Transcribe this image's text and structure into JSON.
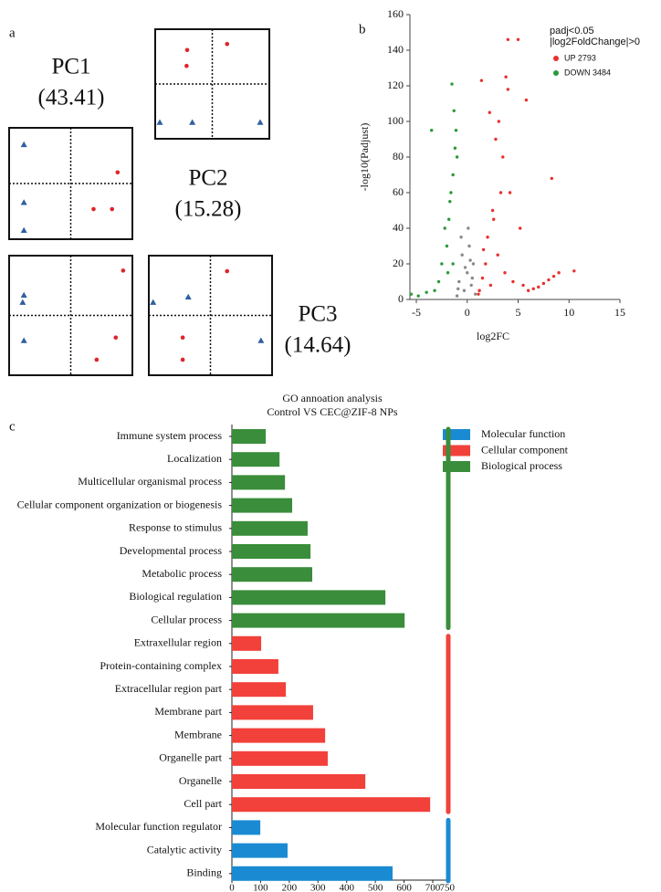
{
  "chart_data": [
    {
      "type": "pca",
      "panel": "a",
      "labels": [
        {
          "name": "PC1",
          "value": "(43.41)"
        },
        {
          "name": "PC2",
          "value": "(15.28)"
        },
        {
          "name": "PC3",
          "value": "(14.64)"
        }
      ],
      "xlim": [
        -1,
        1
      ],
      "ylim": [
        -1,
        1
      ],
      "plots": [
        {
          "series": [
            {
              "marker": "circle",
              "color": "#e0242a",
              "x": [
                -0.44,
                -0.45,
                0.26
              ],
              "y": [
                0.62,
                0.33,
                0.73
              ]
            },
            {
              "marker": "triangle",
              "color": "#2e5fa0",
              "x": [
                -0.92,
                -0.35,
                0.84
              ],
              "y": [
                -0.7,
                -0.7,
                -0.7
              ]
            }
          ]
        },
        {
          "series": [
            {
              "marker": "circle",
              "color": "#e0242a",
              "x": [
                0.76,
                0.37,
                0.67
              ],
              "y": [
                0.2,
                -0.46,
                -0.46
              ]
            },
            {
              "marker": "triangle",
              "color": "#2e5fa0",
              "x": [
                -0.76,
                -0.76,
                -0.76
              ],
              "y": [
                0.7,
                -0.34,
                -0.84
              ]
            }
          ]
        },
        {
          "series": [
            {
              "marker": "circle",
              "color": "#e0242a",
              "x": [
                0.85,
                0.73,
                0.42
              ],
              "y": [
                0.75,
                -0.37,
                -0.74
              ]
            },
            {
              "marker": "triangle",
              "color": "#2e5fa0",
              "x": [
                -0.76,
                -0.78,
                -0.76
              ],
              "y": [
                0.34,
                0.22,
                -0.42
              ]
            }
          ]
        },
        {
          "series": [
            {
              "marker": "circle",
              "color": "#e0242a",
              "x": [
                0.27,
                -0.45,
                -0.45
              ],
              "y": [
                0.74,
                -0.37,
                -0.74
              ]
            },
            {
              "marker": "triangle",
              "color": "#2e5fa0",
              "x": [
                -0.93,
                -0.36,
                0.82
              ],
              "y": [
                0.22,
                0.31,
                -0.42
              ]
            }
          ]
        }
      ]
    },
    {
      "type": "scatter",
      "panel": "b",
      "xlabel": "log2FC",
      "ylabel": "-log10(Padjust)",
      "legend_title": [
        "padj<0.05",
        "|log2FoldChange|>0"
      ],
      "xlim": [
        -6,
        15
      ],
      "ylim": [
        0,
        160
      ],
      "xticks": [
        -5,
        0,
        5,
        10,
        15
      ],
      "yticks": [
        0,
        20,
        40,
        60,
        80,
        100,
        120,
        140,
        160
      ],
      "series": [
        {
          "name": "UP 2793",
          "color": "#e8312f",
          "x": [
            1.2,
            1.5,
            1.8,
            2.0,
            2.3,
            2.6,
            3.0,
            3.3,
            3.7,
            4.0,
            4.5,
            5.0,
            5.5,
            6.0,
            6.5,
            7.0,
            7.5,
            8.0,
            8.5,
            9.0,
            10.5,
            1.4,
            2.2,
            3.5,
            4.2,
            5.2,
            1.1,
            1.6,
            2.5,
            3.8,
            8.3,
            4.0,
            3.1,
            2.8,
            5.8
          ],
          "values": [
            5,
            12,
            20,
            35,
            8,
            45,
            25,
            60,
            15,
            146,
            10,
            146,
            8,
            5,
            6,
            7,
            9,
            11,
            13,
            15,
            16,
            123,
            105,
            80,
            60,
            40,
            3,
            28,
            50,
            125,
            68,
            118,
            100,
            90,
            112
          ]
        },
        {
          "name": "DOWN 3484",
          "color": "#2a9a3a",
          "x": [
            -5.5,
            -4.8,
            -4,
            -3.2,
            -2.5,
            -2,
            -1.8,
            -1.6,
            -1.4,
            -1.2,
            -1.5,
            -1.3,
            -1.1,
            -2.2,
            -3.5,
            -1.7,
            -1.0,
            -1.4,
            -2.8,
            -1.9
          ],
          "values": [
            3,
            2,
            4,
            5,
            20,
            30,
            45,
            60,
            70,
            85,
            121,
            106,
            95,
            40,
            95,
            55,
            80,
            20,
            10,
            15
          ]
        },
        {
          "color": "#8a8a8a",
          "x": [
            -1,
            -0.8,
            -0.5,
            -0.3,
            0,
            0.2,
            0.4,
            0.6,
            0.8,
            -0.6,
            0.1,
            0.5,
            -0.2,
            0.3,
            -0.9
          ],
          "values": [
            2,
            10,
            25,
            5,
            15,
            30,
            8,
            20,
            3,
            35,
            40,
            12,
            18,
            22,
            6
          ]
        }
      ]
    },
    {
      "type": "hbar",
      "panel": "c",
      "title": "GO annoation analysis",
      "subtitle": "Control VS CEC@ZIF-8 NPs",
      "categories": [
        "Immune system process",
        "Localization",
        "Multicellular organismal process",
        "Cellular component organization or biogenesis",
        "Response to stimulus",
        "Developmental process",
        "Metabolic process",
        "Biological regulation",
        "Cellular process",
        "Extraxellular region",
        "Protein-containing complex",
        "Extracellular region part",
        "Membrane part",
        "Membrane",
        "Organelle part",
        "Organelle",
        "Cell part",
        "Molecular function regulator",
        "Catalytic activity",
        "Binding"
      ],
      "xlim": [
        0,
        750
      ],
      "xticks": [
        0,
        100,
        200,
        300,
        400,
        500,
        600,
        700,
        750
      ],
      "series": [
        {
          "name": "Molecular function",
          "color": "#1a8bd2",
          "values": [
            null,
            null,
            null,
            null,
            null,
            null,
            null,
            null,
            null,
            null,
            null,
            null,
            null,
            null,
            null,
            null,
            null,
            99,
            194,
            560
          ]
        },
        {
          "name": "Cellular component",
          "color": "#f2403a",
          "values": [
            null,
            null,
            null,
            null,
            null,
            null,
            null,
            null,
            null,
            102,
            162,
            188,
            283,
            325,
            334,
            465,
            691,
            null,
            null,
            null
          ]
        },
        {
          "name": "Biological process",
          "color": "#3a8d3a",
          "values": [
            118,
            166,
            185,
            210,
            264,
            274,
            280,
            535,
            602,
            null,
            null,
            null,
            null,
            null,
            null,
            null,
            null,
            null,
            null,
            null
          ]
        }
      ]
    }
  ]
}
